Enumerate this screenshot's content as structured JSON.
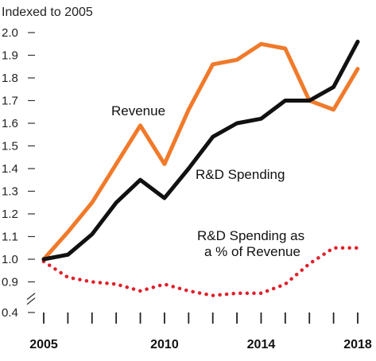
{
  "chart_data": {
    "type": "line",
    "ylabel": "Indexed to 2005",
    "x": [
      2005,
      2006,
      2007,
      2008,
      2009,
      2010,
      2011,
      2012,
      2013,
      2014,
      2015,
      2016,
      2017,
      2018
    ],
    "x_tick_labels": [
      "2005",
      "2010",
      "2014",
      "2018"
    ],
    "x_tick_years": [
      2005,
      2010,
      2014,
      2018
    ],
    "y_ticks": [
      2.0,
      1.9,
      1.8,
      1.7,
      1.6,
      1.5,
      1.4,
      1.3,
      1.2,
      1.1,
      1.0,
      0.9,
      0.4
    ],
    "y_tick_labels": [
      "2.0",
      "1.9",
      "1.8",
      "1.7",
      "1.6",
      "1.5",
      "1.4",
      "1.3",
      "1.2",
      "1.1",
      "1.0",
      "0.9",
      "0.4"
    ],
    "ylim": [
      0.4,
      2.0
    ],
    "y_axis_break": true,
    "grid": false,
    "series": [
      {
        "name": "Revenue",
        "style": "solid",
        "color": "#f07a2a",
        "values": [
          1.0,
          1.12,
          1.25,
          1.42,
          1.59,
          1.42,
          1.66,
          1.86,
          1.88,
          1.95,
          1.93,
          1.7,
          1.66,
          1.84
        ]
      },
      {
        "name": "R&D Spending",
        "style": "solid",
        "color": "#111111",
        "values": [
          1.0,
          1.02,
          1.11,
          1.25,
          1.35,
          1.27,
          1.4,
          1.54,
          1.6,
          1.62,
          1.7,
          1.7,
          1.76,
          1.96
        ]
      },
      {
        "name": "R&D Spending as a % of Revenue",
        "label_lines": [
          "R&D Spending as",
          "a % of Revenue"
        ],
        "style": "dotted",
        "color": "#e0202a",
        "values": [
          0.99,
          0.92,
          0.9,
          0.89,
          0.86,
          0.89,
          0.86,
          0.84,
          0.85,
          0.85,
          0.89,
          0.98,
          1.05,
          1.05
        ]
      }
    ]
  }
}
